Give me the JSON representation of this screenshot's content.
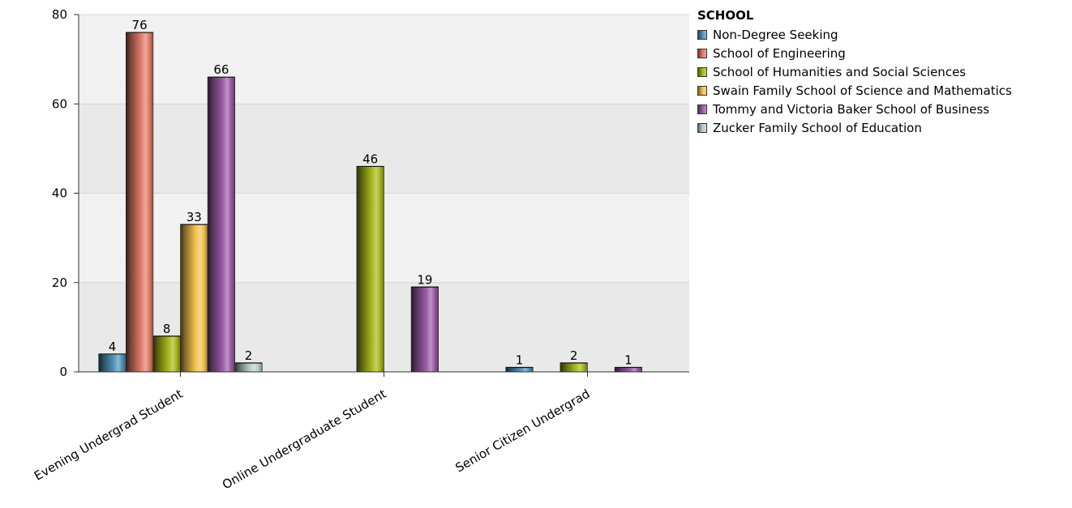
{
  "chart_data": {
    "type": "bar",
    "categories": [
      "Evening Undergrad Student",
      "Online Undergraduate Student",
      "Senior Citizen Undergrad"
    ],
    "series": [
      {
        "name": "Non-Degree Seeking",
        "color": "#4f93b8",
        "values": [
          4,
          null,
          1
        ]
      },
      {
        "name": "School of Engineering",
        "color": "#e07b68",
        "values": [
          76,
          null,
          null
        ]
      },
      {
        "name": "School of Humanities and Social Sciences",
        "color": "#a7b61b",
        "values": [
          8,
          46,
          2
        ]
      },
      {
        "name": "Swain Family School of Science and Mathematics",
        "color": "#f2c14e",
        "values": [
          33,
          null,
          null
        ]
      },
      {
        "name": "Tommy and Victoria Baker School of Business",
        "color": "#9a5ca6",
        "values": [
          66,
          19,
          1
        ]
      },
      {
        "name": "Zucker Family School of Education",
        "color": "#b9cdcf",
        "values": [
          2,
          null,
          null
        ]
      }
    ],
    "ylim": [
      0,
      80
    ],
    "yticks": [
      0,
      20,
      40,
      60,
      80
    ],
    "legend_title": "SCHOOL",
    "legend_position": "top-right",
    "grid": true,
    "xlabel": "",
    "ylabel": "",
    "title": ""
  }
}
